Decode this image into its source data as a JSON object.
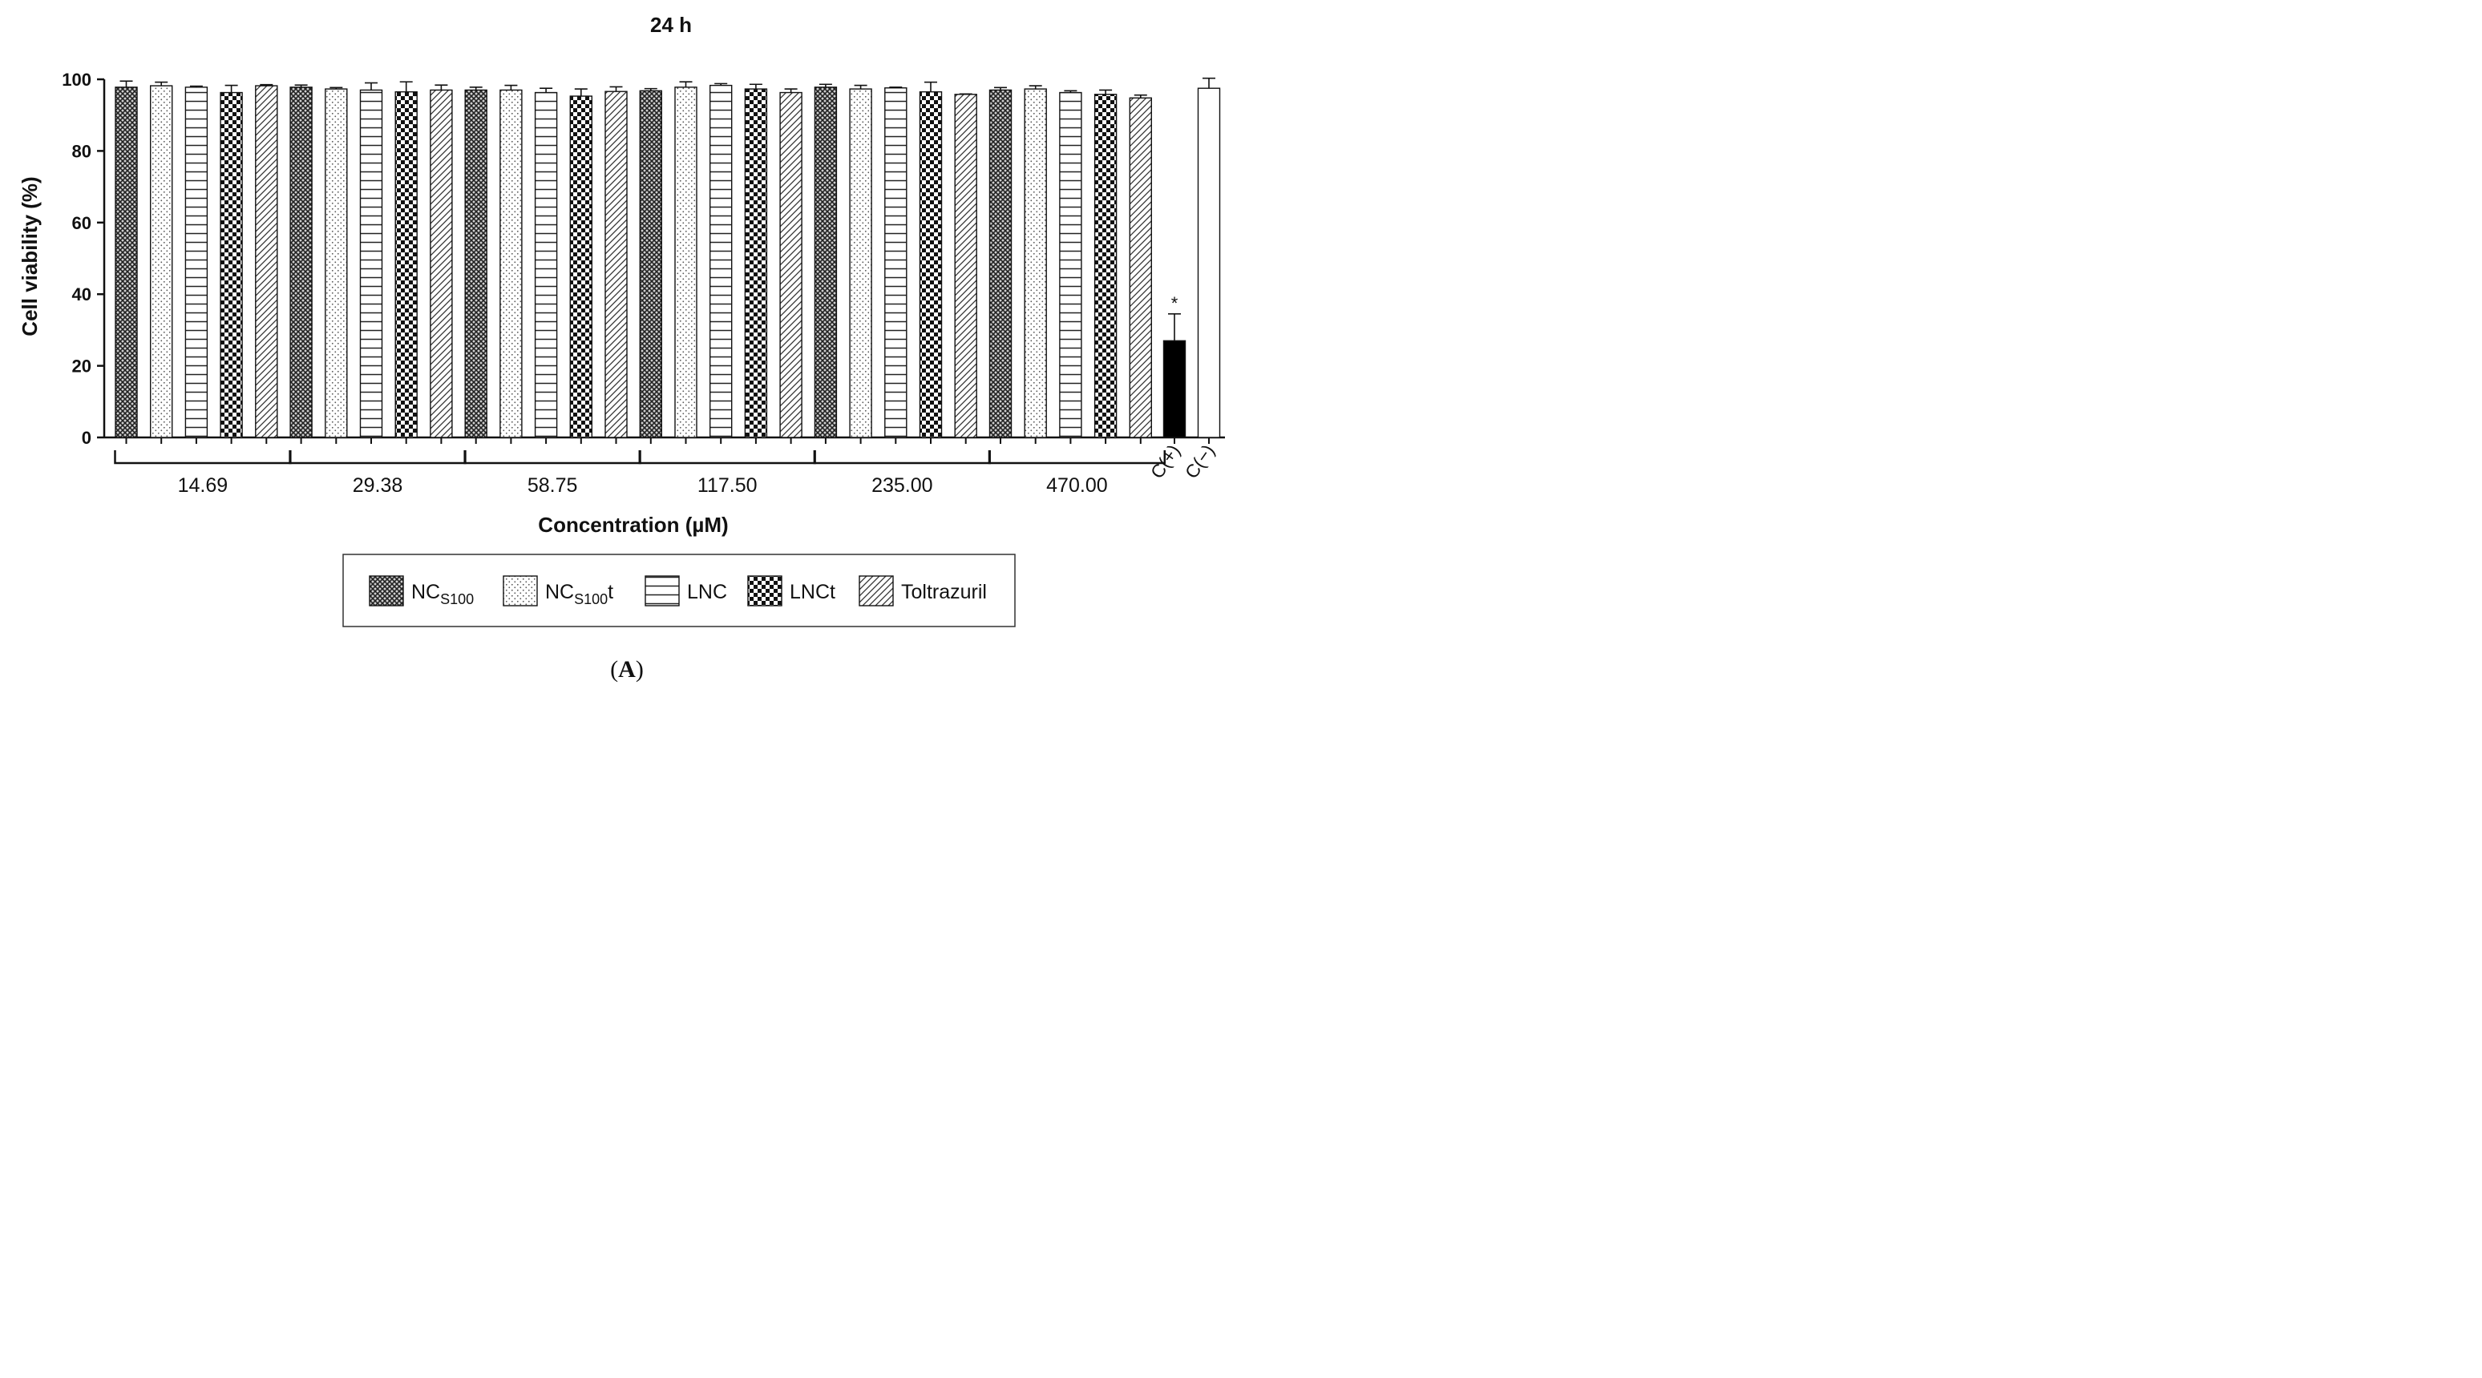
{
  "chart_data": {
    "type": "bar",
    "title": "24 h",
    "ylabel": "Cell viability (%)",
    "xlabel": "Concentration (µM)",
    "ylim": [
      0,
      100
    ],
    "yticks": [
      "0",
      "20",
      "40",
      "60",
      "80",
      "100"
    ],
    "grid": false,
    "legend_position": "bottom",
    "categories": [
      "14.69",
      "29.38",
      "58.75",
      "117.50",
      "235.00",
      "470.00"
    ],
    "series": [
      {
        "name": "NCS100",
        "legend_main": "NC",
        "legend_sub": "S100",
        "legend_suffix": "",
        "pattern": "crosshatch",
        "values": [
          97.8,
          97.8,
          97.0,
          96.8,
          97.8,
          97.0
        ],
        "errors": [
          1.7,
          0.6,
          0.8,
          0.6,
          0.8,
          0.7
        ]
      },
      {
        "name": "NCS100t",
        "legend_main": "NC",
        "legend_sub": "S100",
        "legend_suffix": "t",
        "pattern": "dots",
        "values": [
          98.2,
          97.3,
          97.0,
          97.8,
          97.3,
          97.3
        ],
        "errors": [
          1.0,
          0.4,
          1.3,
          1.5,
          1.0,
          0.9
        ]
      },
      {
        "name": "LNC",
        "legend_main": "LNC",
        "legend_sub": "",
        "legend_suffix": "",
        "pattern": "hlines",
        "values": [
          97.8,
          97.0,
          96.3,
          98.3,
          97.6,
          96.3
        ],
        "errors": [
          0.3,
          2.0,
          1.2,
          0.5,
          0.2,
          0.5
        ]
      },
      {
        "name": "LNCt",
        "legend_main": "LNCt",
        "legend_sub": "",
        "legend_suffix": "",
        "pattern": "checker",
        "values": [
          96.3,
          96.5,
          95.3,
          97.3,
          96.5,
          95.8
        ],
        "errors": [
          2.0,
          2.8,
          2.0,
          1.3,
          2.7,
          1.2
        ]
      },
      {
        "name": "Toltrazuril",
        "legend_main": "Toltrazuril",
        "legend_sub": "",
        "legend_suffix": "",
        "pattern": "diag",
        "values": [
          98.2,
          97.0,
          96.6,
          96.3,
          95.8,
          94.8
        ],
        "errors": [
          0.3,
          1.4,
          1.3,
          1.0,
          0.1,
          0.8
        ]
      }
    ],
    "controls": [
      {
        "label": "C(+)",
        "value": 27.0,
        "error": 7.5,
        "fill": "#000000",
        "annotation": "*"
      },
      {
        "label": "C(−)",
        "value": 97.5,
        "error": 2.8,
        "fill": "#ffffff",
        "annotation": ""
      }
    ],
    "panel_label": {
      "open": "(",
      "letter": "A",
      "close": ")"
    }
  }
}
